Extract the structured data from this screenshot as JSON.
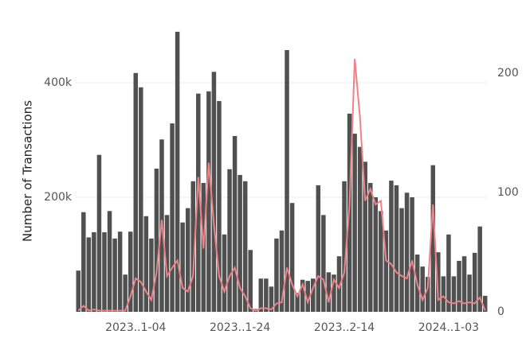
{
  "chart_data": {
    "type": "bar-line",
    "y_label": "Number of Transactions",
    "categories": [
      null,
      null,
      null,
      null,
      null,
      null,
      null,
      null,
      null,
      null,
      null,
      "2023..1-04",
      null,
      null,
      null,
      null,
      null,
      null,
      null,
      null,
      null,
      null,
      null,
      null,
      null,
      null,
      null,
      null,
      null,
      null,
      null,
      "2023..1-24",
      null,
      null,
      null,
      null,
      null,
      null,
      null,
      null,
      null,
      null,
      null,
      null,
      null,
      null,
      null,
      null,
      null,
      null,
      null,
      "2023..2-14",
      null,
      null,
      null,
      null,
      null,
      null,
      null,
      null,
      null,
      null,
      null,
      null,
      null,
      null,
      null,
      null,
      null,
      null,
      null,
      "2024..1-03",
      null,
      null,
      null,
      null,
      null,
      null,
      null
    ],
    "series": [
      {
        "color": "#505050",
        "values": [
          72000,
          174000,
          130000,
          139000,
          274000,
          139000,
          176000,
          128000,
          140000,
          65000,
          140000,
          417000,
          392000,
          167000,
          128000,
          250000,
          301000,
          169000,
          329000,
          489000,
          156000,
          181000,
          228000,
          381000,
          225000,
          385000,
          419000,
          368000,
          135000,
          249000,
          307000,
          239000,
          228000,
          108000,
          5000,
          58000,
          58000,
          44000,
          128000,
          142000,
          457000,
          190000,
          33000,
          56000,
          54000,
          58000,
          221000,
          169000,
          69000,
          65000,
          97000,
          228000,
          346000,
          311000,
          288000,
          262000,
          225000,
          200000,
          176000,
          142000,
          229000,
          221000,
          181000,
          208000,
          200000,
          100000,
          79000,
          61000,
          256000,
          104000,
          62000,
          135000,
          62000,
          89000,
          97000,
          65000,
          103000,
          149000,
          28000
        ]
      },
      {
        "color": "#ee8286",
        "axis": "y2",
        "values": [
          1,
          5,
          1,
          2,
          1,
          1,
          1,
          1,
          1,
          1,
          13,
          28,
          25,
          17,
          10,
          33,
          77,
          30,
          37,
          43,
          20,
          17,
          30,
          113,
          53,
          125,
          73,
          30,
          17,
          30,
          37,
          20,
          13,
          3,
          1,
          3,
          3,
          2,
          7,
          8,
          37,
          23,
          13,
          23,
          8,
          20,
          30,
          27,
          8,
          27,
          20,
          33,
          90,
          212,
          163,
          93,
          103,
          90,
          93,
          43,
          40,
          33,
          30,
          28,
          43,
          23,
          10,
          20,
          90,
          10,
          13,
          8,
          7,
          9,
          7,
          8,
          7,
          12,
          1
        ]
      }
    ],
    "ylim": [
      0,
      500000
    ],
    "yticks": [
      {
        "value": 200000,
        "label": "200k"
      },
      {
        "value": 400000,
        "label": "400k"
      }
    ],
    "y2lim": [
      0,
      240
    ],
    "y2ticks": [
      0,
      100,
      200
    ],
    "grid": true
  }
}
